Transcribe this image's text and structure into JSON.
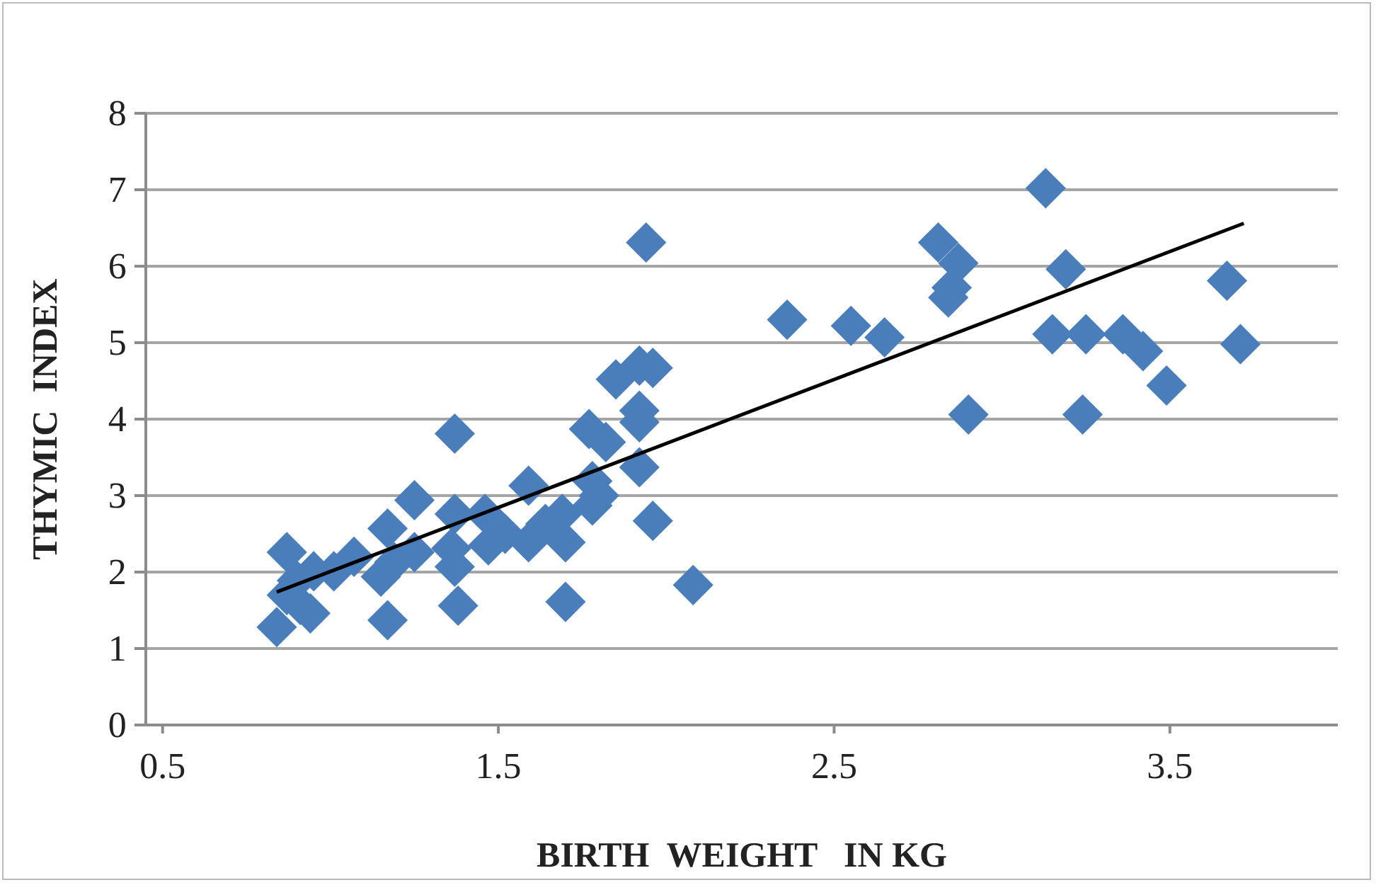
{
  "chart_data": {
    "type": "scatter",
    "xlabel": "BIRTH  WEIGHT   IN KG",
    "ylabel": "THYMIC  INDEX",
    "xlim": [
      0.45,
      4
    ],
    "xticks": [
      0.5,
      1.5,
      2.5,
      3.5
    ],
    "ylim": [
      0,
      8
    ],
    "yticks": [
      0,
      1,
      2,
      3,
      4,
      5,
      6,
      7,
      8
    ],
    "grid": "y",
    "marker": "diamond",
    "series": [
      {
        "color": "#4a7ebb",
        "x": [
          3.13,
          1.94,
          2.81,
          2.87,
          2.85,
          2.84,
          3.19,
          2.36,
          2.55,
          2.65,
          3.15,
          3.25,
          3.36,
          3.42,
          3.49,
          3.67,
          3.71,
          2.9,
          3.24,
          2.08,
          1.96,
          1.37,
          1.25,
          0.87,
          1.17,
          0.84,
          1.17,
          1.38,
          1.7,
          1.59,
          1.77,
          1.82,
          1.85,
          1.92,
          1.96,
          1.92,
          1.92,
          1.92,
          1.8,
          1.78,
          1.69,
          1.64,
          1.59,
          1.46,
          1.47,
          1.37,
          1.36,
          1.37,
          1.25,
          1.19,
          1.15,
          1.07,
          1.01,
          0.95,
          0.9,
          0.91,
          0.94,
          0.87,
          1.52,
          1.7,
          1.78
        ],
        "values": [
          7.02,
          6.31,
          6.31,
          6.04,
          5.72,
          5.59,
          5.96,
          5.3,
          5.22,
          5.07,
          5.11,
          5.11,
          5.11,
          4.89,
          4.44,
          5.81,
          4.98,
          4.06,
          4.06,
          1.83,
          2.67,
          3.81,
          2.94,
          2.26,
          2.57,
          1.28,
          1.37,
          1.56,
          1.61,
          3.13,
          3.87,
          3.7,
          4.52,
          4.7,
          4.67,
          4.11,
          3.96,
          3.37,
          3.0,
          2.87,
          2.76,
          2.63,
          2.39,
          2.76,
          2.35,
          2.76,
          2.31,
          2.07,
          2.26,
          2.13,
          1.94,
          2.2,
          2.01,
          2.01,
          1.89,
          1.57,
          1.46,
          1.7,
          2.5,
          2.39,
          3.19
        ]
      },
      {
        "type": "line",
        "color": "#000000",
        "marker": "none",
        "x": [
          0.84,
          3.72
        ],
        "values": [
          1.74,
          6.56
        ]
      }
    ]
  }
}
